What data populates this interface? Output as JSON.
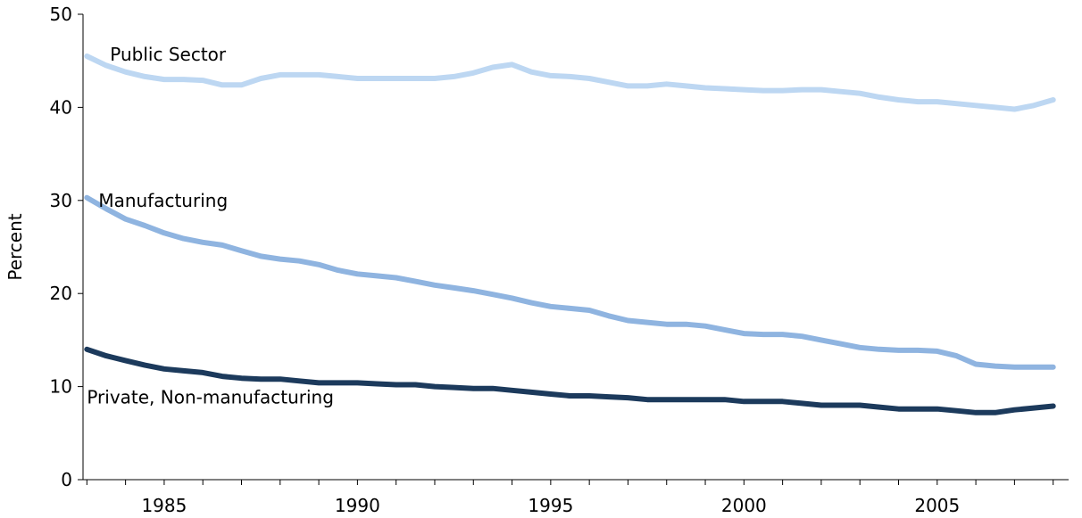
{
  "chart_data": {
    "type": "line",
    "title": "",
    "xlabel": "",
    "ylabel": "Percent",
    "xlim": [
      1982.9,
      2008.4
    ],
    "ylim": [
      0,
      50
    ],
    "yticks": [
      0,
      10,
      20,
      30,
      40,
      50
    ],
    "xtick_labels": [
      1985,
      1990,
      1995,
      2000,
      2005
    ],
    "grid": false,
    "legend": "none",
    "x": [
      1983,
      1983.5,
      1984,
      1984.5,
      1985,
      1985.5,
      1986,
      1986.5,
      1987,
      1987.5,
      1988,
      1988.5,
      1989,
      1989.5,
      1990,
      1990.5,
      1991,
      1991.5,
      1992,
      1992.5,
      1993,
      1993.5,
      1994,
      1994.5,
      1995,
      1995.5,
      1996,
      1996.5,
      1997,
      1997.5,
      1998,
      1998.5,
      1999,
      1999.5,
      2000,
      2000.5,
      2001,
      2001.5,
      2002,
      2002.5,
      2003,
      2003.5,
      2004,
      2004.5,
      2005,
      2005.5,
      2006,
      2006.5,
      2007,
      2007.5,
      2008
    ],
    "series": [
      {
        "name": "Public Sector",
        "color": "#bdd7f2",
        "values": [
          45.5,
          44.5,
          43.8,
          43.3,
          43.0,
          43.0,
          42.9,
          42.4,
          42.4,
          43.1,
          43.5,
          43.5,
          43.5,
          43.3,
          43.1,
          43.1,
          43.1,
          43.1,
          43.1,
          43.3,
          43.7,
          44.3,
          44.6,
          43.8,
          43.4,
          43.3,
          43.1,
          42.7,
          42.3,
          42.3,
          42.5,
          42.3,
          42.1,
          42.0,
          41.9,
          41.8,
          41.8,
          41.9,
          41.9,
          41.7,
          41.5,
          41.1,
          40.8,
          40.6,
          40.6,
          40.4,
          40.2,
          40.0,
          39.8,
          40.2,
          40.8
        ]
      },
      {
        "name": "Manufacturing",
        "color": "#8fb4e0",
        "values": [
          30.3,
          29.1,
          28.0,
          27.3,
          26.5,
          25.9,
          25.5,
          25.2,
          24.6,
          24.0,
          23.7,
          23.5,
          23.1,
          22.5,
          22.1,
          21.9,
          21.7,
          21.3,
          20.9,
          20.6,
          20.3,
          19.9,
          19.5,
          19.0,
          18.6,
          18.4,
          18.2,
          17.6,
          17.1,
          16.9,
          16.7,
          16.7,
          16.5,
          16.1,
          15.7,
          15.6,
          15.6,
          15.4,
          15.0,
          14.6,
          14.2,
          14.0,
          13.9,
          13.9,
          13.8,
          13.3,
          12.4,
          12.2,
          12.1,
          12.1,
          12.1
        ]
      },
      {
        "name": "Private, Non-manufacturing",
        "color": "#1c3a5c",
        "values": [
          14.0,
          13.3,
          12.8,
          12.3,
          11.9,
          11.7,
          11.5,
          11.1,
          10.9,
          10.8,
          10.8,
          10.6,
          10.4,
          10.4,
          10.4,
          10.3,
          10.2,
          10.2,
          10.0,
          9.9,
          9.8,
          9.8,
          9.6,
          9.4,
          9.2,
          9.0,
          9.0,
          8.9,
          8.8,
          8.6,
          8.6,
          8.6,
          8.6,
          8.6,
          8.4,
          8.4,
          8.4,
          8.2,
          8.0,
          8.0,
          8.0,
          7.8,
          7.6,
          7.6,
          7.6,
          7.4,
          7.2,
          7.2,
          7.5,
          7.7,
          7.9
        ]
      }
    ]
  }
}
